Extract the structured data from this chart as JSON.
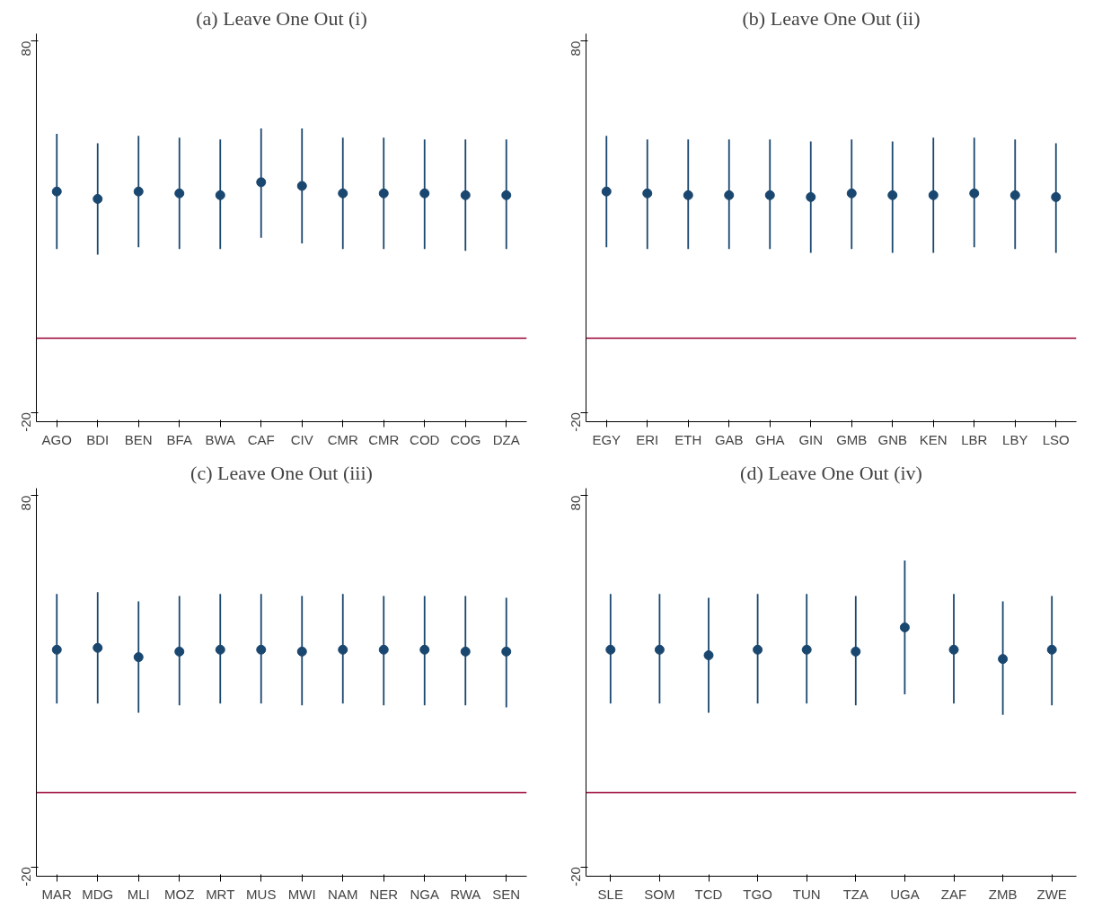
{
  "chart_data": [
    {
      "type": "scatter",
      "title": "(a) Leave One Out (i)",
      "categories": [
        "AGO",
        "BDI",
        "BEN",
        "BFA",
        "BWA",
        "CAF",
        "CIV",
        "CMR",
        "CMR",
        "COD",
        "COG",
        "DZA"
      ],
      "series": [
        {
          "color": "#1a476f",
          "values": [
            39.5,
            37.5,
            39.5,
            39,
            38.5,
            42,
            41,
            39,
            39,
            39,
            38.5,
            38.5
          ],
          "errors": [
            [
              24,
              55
            ],
            [
              22.5,
              52.5
            ],
            [
              24.5,
              54.5
            ],
            [
              24,
              54
            ],
            [
              24,
              53.5
            ],
            [
              27,
              56.5
            ],
            [
              25.5,
              56.5
            ],
            [
              24,
              54
            ],
            [
              24,
              54
            ],
            [
              24,
              53.5
            ],
            [
              23.5,
              53.5
            ],
            [
              24,
              53.5
            ]
          ]
        }
      ],
      "ylim": [
        -22.5,
        82
      ],
      "yticks": [
        -20,
        80
      ],
      "grid": false,
      "marker": "circle",
      "ref_lines": [
        {
          "axis": "y",
          "value": 0,
          "color": "#990033"
        }
      ]
    },
    {
      "type": "scatter",
      "title": "(b) Leave One Out (ii)",
      "categories": [
        "EGY",
        "ERI",
        "ETH",
        "GAB",
        "GHA",
        "GIN",
        "GMB",
        "GNB",
        "KEN",
        "LBR",
        "LBY",
        "LSO"
      ],
      "series": [
        {
          "color": "#1a476f",
          "values": [
            39.5,
            39,
            38.5,
            38.5,
            38.5,
            38,
            39,
            38.5,
            38.5,
            39,
            38.5,
            38
          ],
          "errors": [
            [
              24.5,
              54.5
            ],
            [
              24,
              53.5
            ],
            [
              24,
              53.5
            ],
            [
              24,
              53.5
            ],
            [
              24,
              53.5
            ],
            [
              23,
              53
            ],
            [
              24,
              53.5
            ],
            [
              23,
              53
            ],
            [
              23,
              54
            ],
            [
              24.5,
              54
            ],
            [
              24,
              53.5
            ],
            [
              23,
              52.5
            ]
          ]
        }
      ],
      "ylim": [
        -22.5,
        82
      ],
      "yticks": [
        -20,
        80
      ],
      "grid": false,
      "marker": "circle",
      "ref_lines": [
        {
          "axis": "y",
          "value": 0,
          "color": "#990033"
        }
      ]
    },
    {
      "type": "scatter",
      "title": "(c) Leave One Out (iii)",
      "categories": [
        "MAR",
        "MDG",
        "MLI",
        "MOZ",
        "MRT",
        "MUS",
        "MWI",
        "NAM",
        "NER",
        "NGA",
        "RWA",
        "SEN"
      ],
      "series": [
        {
          "color": "#1a476f",
          "values": [
            38.5,
            39,
            36.5,
            38,
            38.5,
            38.5,
            38,
            38.5,
            38.5,
            38.5,
            38,
            38
          ],
          "errors": [
            [
              24,
              53.5
            ],
            [
              24,
              54
            ],
            [
              21.5,
              51.5
            ],
            [
              23.5,
              53
            ],
            [
              24,
              53.5
            ],
            [
              24,
              53.5
            ],
            [
              23.5,
              53
            ],
            [
              24,
              53.5
            ],
            [
              23.5,
              53
            ],
            [
              23.5,
              53
            ],
            [
              23.5,
              53
            ],
            [
              23,
              52.5
            ]
          ]
        }
      ],
      "ylim": [
        -22.5,
        82
      ],
      "yticks": [
        -20,
        80
      ],
      "grid": false,
      "marker": "circle",
      "ref_lines": [
        {
          "axis": "y",
          "value": 0,
          "color": "#990033"
        }
      ]
    },
    {
      "type": "scatter",
      "title": "(d) Leave One Out (iv)",
      "categories": [
        "SLE",
        "SOM",
        "TCD",
        "TGO",
        "TUN",
        "TZA",
        "UGA",
        "ZAF",
        "ZMB",
        "ZWE"
      ],
      "series": [
        {
          "color": "#1a476f",
          "values": [
            38.5,
            38.5,
            37,
            38.5,
            38.5,
            38,
            44.5,
            38.5,
            36,
            38.5
          ],
          "errors": [
            [
              24,
              53.5
            ],
            [
              24,
              53.5
            ],
            [
              21.5,
              52.5
            ],
            [
              24,
              53.5
            ],
            [
              24,
              53.5
            ],
            [
              23.5,
              53
            ],
            [
              26.5,
              62.5
            ],
            [
              24,
              53.5
            ],
            [
              21,
              51.5
            ],
            [
              23.5,
              53
            ]
          ]
        }
      ],
      "ylim": [
        -22.5,
        82
      ],
      "yticks": [
        -20,
        80
      ],
      "grid": false,
      "marker": "circle",
      "ref_lines": [
        {
          "axis": "y",
          "value": 0,
          "color": "#990033"
        }
      ]
    }
  ]
}
